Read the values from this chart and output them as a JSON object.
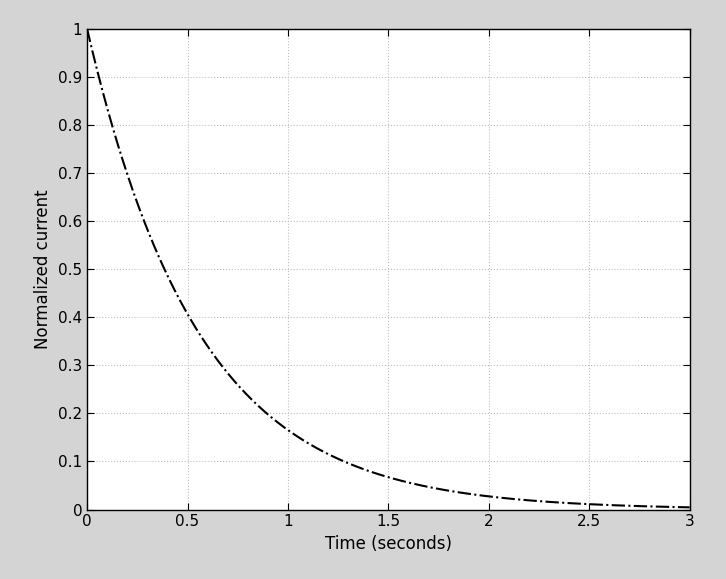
{
  "xlabel": "Time (seconds)",
  "ylabel": "Normalized current",
  "xlim": [
    0,
    3
  ],
  "ylim": [
    0,
    1
  ],
  "xticks": [
    0,
    0.5,
    1.0,
    1.5,
    2.0,
    2.5,
    3.0
  ],
  "yticks": [
    0,
    0.1,
    0.2,
    0.3,
    0.4,
    0.5,
    0.6,
    0.7,
    0.8,
    0.9,
    1.0
  ],
  "decay_rate": 1.8,
  "line_color": "#000000",
  "line_style": "-.",
  "line_width": 1.5,
  "grid_color": "#c0c0c0",
  "grid_linestyle": ":",
  "grid_linewidth": 0.8,
  "bg_color": "#ffffff",
  "fig_bg_color": "#d4d4d4",
  "xlabel_fontsize": 12,
  "ylabel_fontsize": 12,
  "tick_fontsize": 11,
  "spine_linewidth": 1.0
}
